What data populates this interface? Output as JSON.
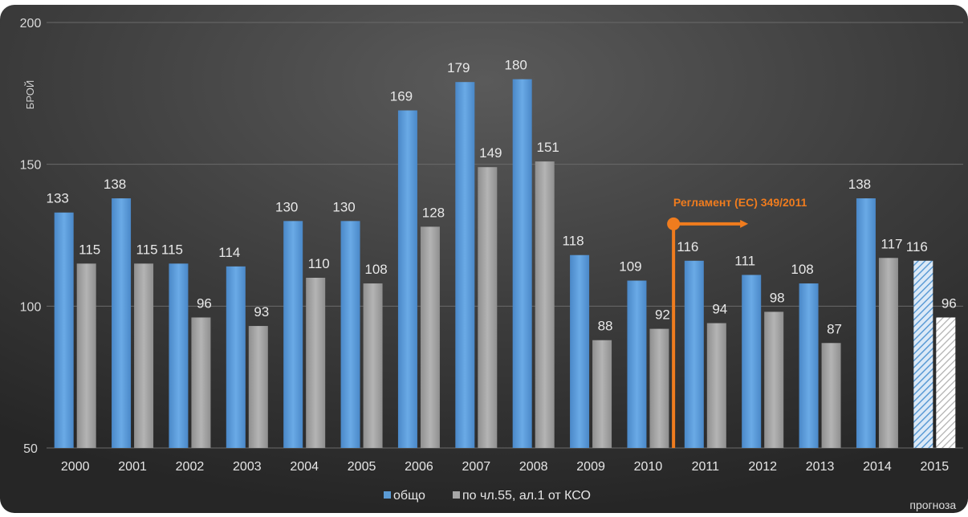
{
  "chart_data": {
    "type": "bar",
    "title": "",
    "ylabel": "БРОЙ",
    "ylim": [
      50,
      200
    ],
    "yticks": [
      50,
      100,
      150,
      200
    ],
    "grid": true,
    "legend_position": "bottom",
    "categories": [
      "2000",
      "2001",
      "2002",
      "2003",
      "2004",
      "2005",
      "2006",
      "2007",
      "2008",
      "2009",
      "2010",
      "2011",
      "2012",
      "2013",
      "2014",
      "2015"
    ],
    "series": [
      {
        "name": "общо",
        "color": "#5b9bd5",
        "values": [
          133,
          138,
          115,
          114,
          130,
          130,
          169,
          179,
          180,
          118,
          109,
          116,
          111,
          108,
          138,
          116
        ]
      },
      {
        "name": "по чл.55, ал.1 от КСО",
        "color": "#a6a6a6",
        "values": [
          115,
          115,
          96,
          93,
          110,
          108,
          128,
          149,
          151,
          88,
          92,
          94,
          98,
          87,
          117,
          96
        ]
      }
    ],
    "forecast_category": "2015",
    "forecast_label": "прогноза",
    "annotation": {
      "text": "Регламент (ЕС) 349/2011",
      "color": "#f07c1e",
      "between": [
        "2010",
        "2011"
      ]
    }
  }
}
